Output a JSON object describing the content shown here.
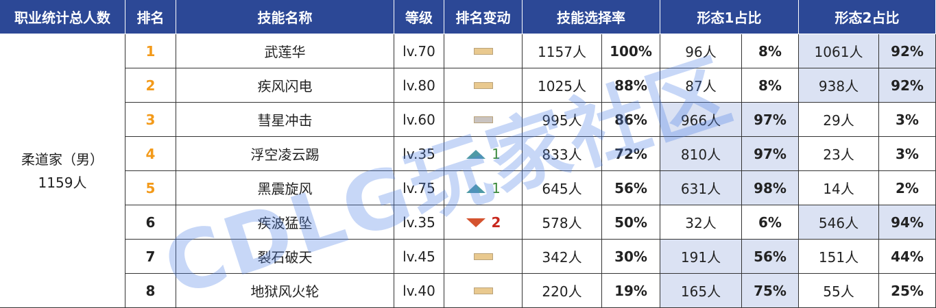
{
  "header": {
    "total": "职业统计总人数",
    "rank": "排名",
    "skill": "技能名称",
    "level": "等级",
    "rank_change": "排名变动",
    "select_rate": "技能选择率",
    "form1": "形态1占比",
    "form2": "形态2占比"
  },
  "class_cell": {
    "name": "柔道家（男）",
    "count": "1159人"
  },
  "watermark": "CDLG玩家社区",
  "rows": [
    {
      "rank": "1",
      "top": true,
      "skill": "武莲华",
      "level": "lv.70",
      "change": {
        "direction": "flat",
        "color": "#e9c98f"
      },
      "count": "1157人",
      "rate": "100%",
      "form1_count": "96人",
      "form1_rate": "8%",
      "form2_count": "1061人",
      "form2_rate": "92%",
      "highlight": "form2"
    },
    {
      "rank": "2",
      "top": true,
      "skill": "疾风闪电",
      "level": "lv.80",
      "change": {
        "direction": "flat",
        "color": "#e9c98f"
      },
      "count": "1025人",
      "rate": "88%",
      "form1_count": "87人",
      "form1_rate": "8%",
      "form2_count": "938人",
      "form2_rate": "92%",
      "highlight": "form2"
    },
    {
      "rank": "3",
      "top": true,
      "skill": "彗星冲击",
      "level": "lv.60",
      "change": {
        "direction": "flat",
        "color": "#c9c3c0"
      },
      "count": "995人",
      "rate": "86%",
      "form1_count": "966人",
      "form1_rate": "97%",
      "form2_count": "29人",
      "form2_rate": "3%",
      "highlight": "form1"
    },
    {
      "rank": "4",
      "top": true,
      "skill": "浮空凌云踢",
      "level": "lv.35",
      "change": {
        "direction": "up",
        "label": "1"
      },
      "count": "833人",
      "rate": "72%",
      "form1_count": "810人",
      "form1_rate": "97%",
      "form2_count": "23人",
      "form2_rate": "3%",
      "highlight": "form1"
    },
    {
      "rank": "5",
      "top": true,
      "skill": "黑震旋风",
      "level": "lv.75",
      "change": {
        "direction": "up",
        "label": "1"
      },
      "count": "645人",
      "rate": "56%",
      "form1_count": "631人",
      "form1_rate": "98%",
      "form2_count": "14人",
      "form2_rate": "2%",
      "highlight": "form1"
    },
    {
      "rank": "6",
      "top": false,
      "skill": "疾波猛坠",
      "level": "lv.35",
      "change": {
        "direction": "down",
        "label": "2"
      },
      "count": "578人",
      "rate": "50%",
      "form1_count": "32人",
      "form1_rate": "6%",
      "form2_count": "546人",
      "form2_rate": "94%",
      "highlight": "form2"
    },
    {
      "rank": "7",
      "top": false,
      "skill": "裂石破天",
      "level": "lv.45",
      "change": {
        "direction": "flat",
        "color": "#e9c98f"
      },
      "count": "342人",
      "rate": "30%",
      "form1_count": "191人",
      "form1_rate": "56%",
      "form2_count": "151人",
      "form2_rate": "44%",
      "highlight": "form1"
    },
    {
      "rank": "8",
      "top": false,
      "skill": "地狱风火轮",
      "level": "lv.40",
      "change": {
        "direction": "flat",
        "color": "#e9c98f"
      },
      "count": "220人",
      "rate": "19%",
      "form1_count": "165人",
      "form1_rate": "75%",
      "form2_count": "55人",
      "form2_rate": "25%",
      "highlight": "form1"
    }
  ]
}
